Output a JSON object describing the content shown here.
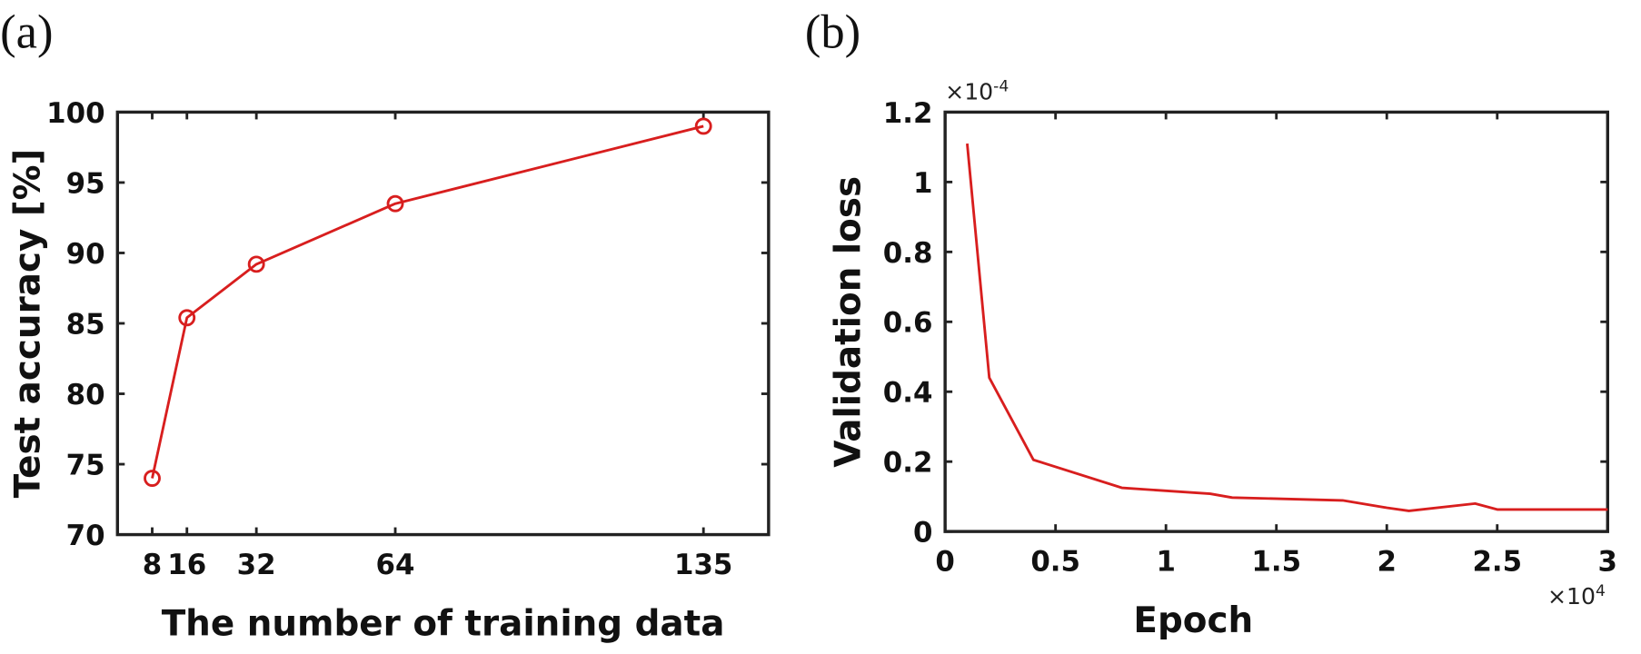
{
  "colors": {
    "series": "#d81e1e",
    "axes": "#222222"
  },
  "chart_data": [
    {
      "type": "line",
      "panel_label": "(a)",
      "xlabel": "The number of training data",
      "ylabel": "Test accuracy [%]",
      "xlim": [
        0,
        150
      ],
      "ylim": [
        70,
        100
      ],
      "xticks": [
        8,
        16,
        32,
        64,
        135
      ],
      "yticks": [
        70,
        75,
        80,
        85,
        90,
        95,
        100
      ],
      "marker": "circle",
      "grid": false,
      "series": [
        {
          "x": [
            8,
            16,
            32,
            64,
            135
          ],
          "y": [
            74.0,
            85.4,
            89.2,
            93.5,
            99.0
          ]
        }
      ]
    },
    {
      "type": "line",
      "panel_label": "(b)",
      "xlabel": "Epoch",
      "ylabel": "Validation loss",
      "x_multiplier": "×10",
      "x_multiplier_exp": "4",
      "y_multiplier": "×10",
      "y_multiplier_exp": "-4",
      "xlim": [
        0,
        3
      ],
      "ylim": [
        0,
        1.2
      ],
      "xticks": [
        0,
        0.5,
        1,
        1.5,
        2,
        2.5,
        3
      ],
      "yticks": [
        0,
        0.2,
        0.4,
        0.6,
        0.8,
        1,
        1.2
      ],
      "grid": false,
      "series": [
        {
          "x": [
            0.1,
            0.2,
            0.4,
            0.8,
            1.2,
            1.3,
            1.8,
            2.0,
            2.1,
            2.4,
            2.5,
            3.0
          ],
          "y": [
            1.11,
            0.44,
            0.205,
            0.125,
            0.108,
            0.097,
            0.089,
            0.068,
            0.059,
            0.08,
            0.063,
            0.063
          ]
        }
      ]
    }
  ]
}
